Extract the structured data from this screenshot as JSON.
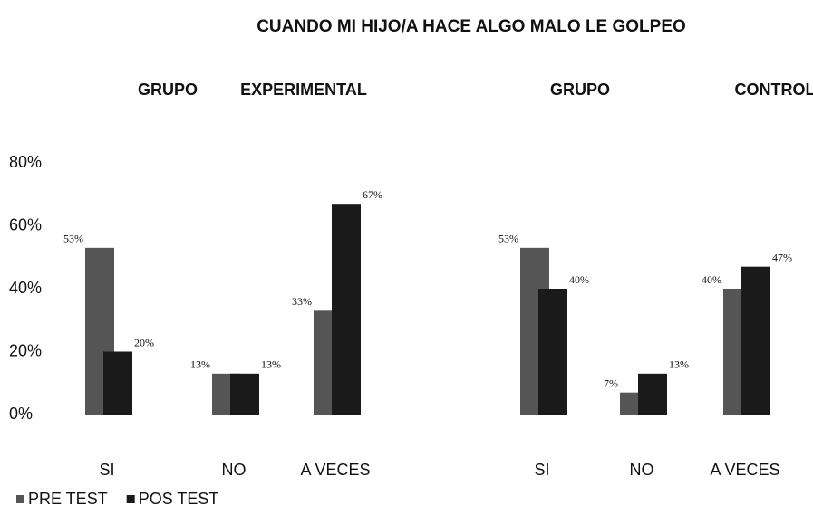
{
  "chart_data": [
    {
      "type": "bar",
      "title": "CUANDO MI HIJO/A HACE ALGO MALO LE GOLPEO",
      "subtitle": [
        "GRUPO",
        "EXPERIMENTAL"
      ],
      "categories": [
        "SI",
        "NO",
        "A VECES"
      ],
      "series": [
        {
          "name": "PRE TEST",
          "color": "#555555",
          "values": [
            53,
            13,
            33
          ],
          "value_labels": [
            "53%",
            "13%",
            "33%"
          ]
        },
        {
          "name": "POS TEST",
          "color": "#1a1a1a",
          "values": [
            20,
            13,
            67
          ],
          "value_labels": [
            "20%",
            "13%",
            "67%"
          ]
        }
      ],
      "ylim": [
        0,
        80
      ],
      "yticks": [
        {
          "value": 0,
          "label": "0%"
        },
        {
          "value": 20,
          "label": "20%"
        },
        {
          "value": 40,
          "label": "40%"
        },
        {
          "value": 60,
          "label": "60%"
        },
        {
          "value": 80,
          "label": "80%"
        }
      ],
      "legend": "bottom-left"
    },
    {
      "type": "bar",
      "subtitle": [
        "GRUPO",
        "CONTROL"
      ],
      "categories": [
        "SI",
        "NO",
        "A VECES"
      ],
      "series": [
        {
          "color": "#555555",
          "values": [
            53,
            7,
            40
          ],
          "value_labels": [
            "53%",
            "7%",
            "40%"
          ]
        },
        {
          "color": "#1a1a1a",
          "values": [
            40,
            13,
            47
          ],
          "value_labels": [
            "40%",
            "13%",
            "47%"
          ]
        }
      ],
      "ylim": [
        0,
        80
      ]
    }
  ]
}
